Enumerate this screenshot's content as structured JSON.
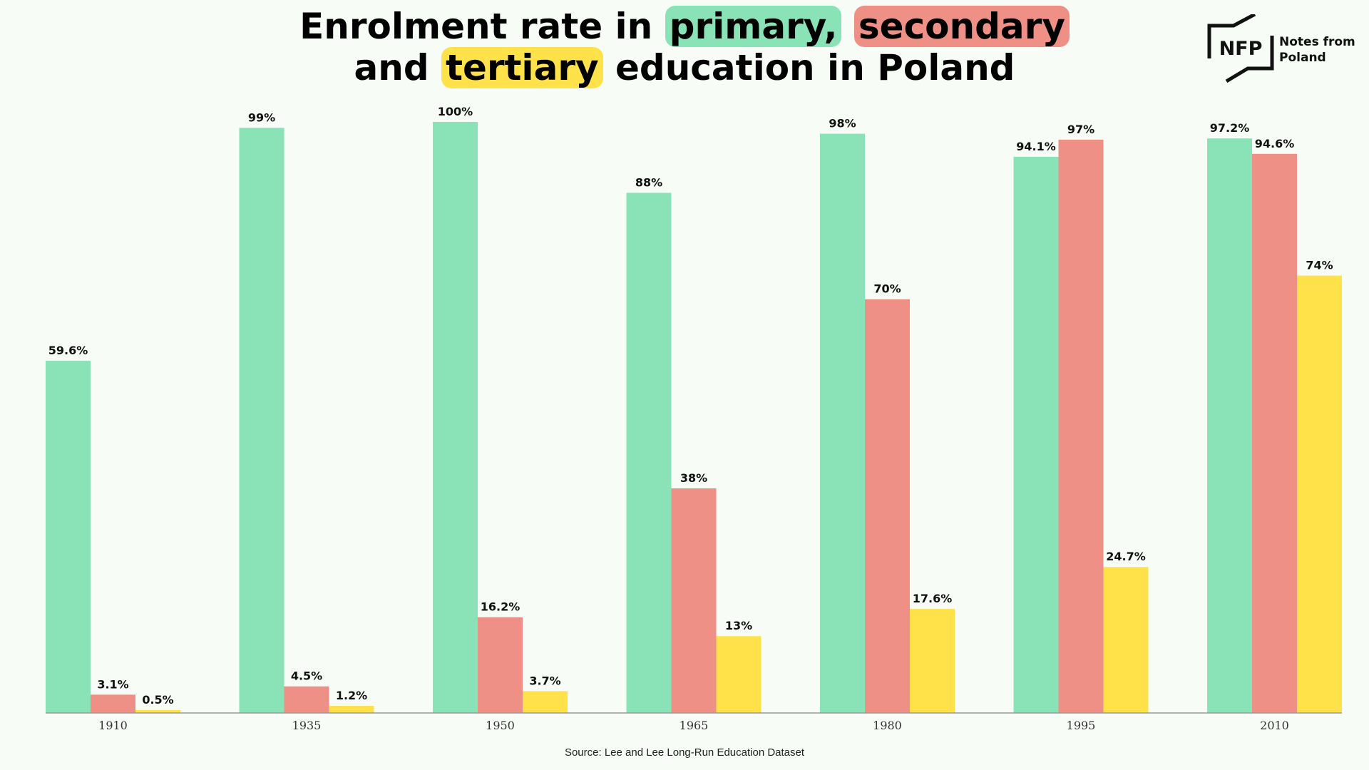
{
  "title": {
    "part1": "Enrolment rate in ",
    "primary": "primary,",
    "space": " ",
    "secondary": "secondary",
    "part2": "and ",
    "tertiary": "tertiary",
    "part3": " education in Poland"
  },
  "logo": {
    "mark": "NFP",
    "line1": "Notes from",
    "line2": "Poland",
    "icon": "nfp-logo-icon"
  },
  "source": "Source: Lee and Lee Long-Run Education Dataset",
  "colors": {
    "primary": "#89e3b6",
    "secondary": "#ef9086",
    "tertiary": "#ffe24a",
    "background": "#f7fcf6"
  },
  "chart_data": {
    "type": "bar",
    "title": "Enrolment rate in primary, secondary and tertiary education in Poland",
    "xlabel": "",
    "ylabel": "",
    "ylim": [
      0,
      100
    ],
    "grid": false,
    "legend": "none (series identified by highlighted words in title)",
    "categories": [
      "1910",
      "1935",
      "1950",
      "1965",
      "1980",
      "1995",
      "2010"
    ],
    "series": [
      {
        "values": [
          59.6,
          99,
          100,
          88,
          98,
          94.1,
          97.2
        ],
        "labels": [
          "59.6%",
          "99%",
          "100%",
          "88%",
          "98%",
          "94.1%",
          "97.2%"
        ],
        "color": "#89e3b6"
      },
      {
        "values": [
          3.1,
          4.5,
          16.2,
          38,
          70,
          97,
          94.6
        ],
        "labels": [
          "3.1%",
          "4.5%",
          "16.2%",
          "38%",
          "70%",
          "97%",
          "94.6%"
        ],
        "color": "#ef9086"
      },
      {
        "values": [
          0.5,
          1.2,
          3.7,
          13,
          17.6,
          24.7,
          74
        ],
        "labels": [
          "0.5%",
          "1.2%",
          "3.7%",
          "13%",
          "17.6%",
          "24.7%",
          "74%"
        ],
        "color": "#ffe24a"
      }
    ]
  }
}
